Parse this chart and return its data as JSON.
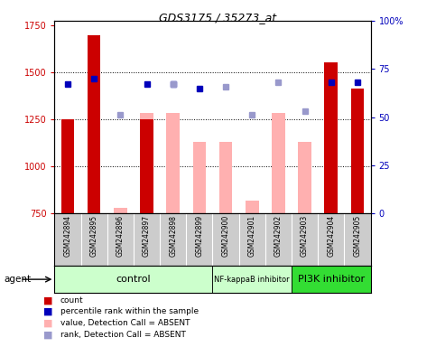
{
  "title": "GDS3175 / 35273_at",
  "samples": [
    "GSM242894",
    "GSM242895",
    "GSM242896",
    "GSM242897",
    "GSM242898",
    "GSM242899",
    "GSM242900",
    "GSM242901",
    "GSM242902",
    "GSM242903",
    "GSM242904",
    "GSM242905"
  ],
  "bar_values": [
    1250,
    1700,
    null,
    1250,
    null,
    null,
    null,
    null,
    null,
    null,
    1555,
    1415
  ],
  "bar_absent_values": [
    null,
    null,
    780,
    1285,
    1285,
    1130,
    1130,
    820,
    1285,
    1130,
    null,
    null
  ],
  "rank_present": [
    67,
    70,
    null,
    67,
    67,
    65,
    null,
    null,
    null,
    null,
    68,
    68
  ],
  "rank_absent": [
    null,
    null,
    51,
    null,
    67,
    null,
    66,
    51,
    68,
    53,
    null,
    null
  ],
  "bar_color_red": "#cc0000",
  "bar_color_pink": "#ffb0b0",
  "rank_color_blue": "#0000bb",
  "rank_color_lightblue": "#9999cc",
  "ylim_left": [
    750,
    1775
  ],
  "ylim_right": [
    0,
    100
  ],
  "yticks_left": [
    750,
    1000,
    1250,
    1500,
    1750
  ],
  "yticks_right": [
    0,
    25,
    50,
    75,
    100
  ],
  "ytick_labels_right": [
    "0",
    "25",
    "50",
    "75",
    "100%"
  ],
  "hgrid_vals": [
    1000,
    1250,
    1500
  ],
  "group_defs": [
    {
      "start": 0,
      "end": 6,
      "color": "#ccffcc",
      "label": "control",
      "fontsize": 8
    },
    {
      "start": 6,
      "end": 9,
      "color": "#ccffcc",
      "label": "NF-kappaB inhibitor",
      "fontsize": 6
    },
    {
      "start": 9,
      "end": 12,
      "color": "#33dd33",
      "label": "PI3K inhibitor",
      "fontsize": 8
    }
  ],
  "legend_items": [
    {
      "label": "count",
      "color": "#cc0000"
    },
    {
      "label": "percentile rank within the sample",
      "color": "#0000bb"
    },
    {
      "label": "value, Detection Call = ABSENT",
      "color": "#ffb0b0"
    },
    {
      "label": "rank, Detection Call = ABSENT",
      "color": "#9999cc"
    }
  ],
  "bar_width": 0.5,
  "bg_color": "#ffffff",
  "left_label_color": "#cc0000",
  "right_label_color": "#0000bb",
  "title_fontsize": 9,
  "tick_fontsize": 7,
  "sample_fontsize": 5.5
}
